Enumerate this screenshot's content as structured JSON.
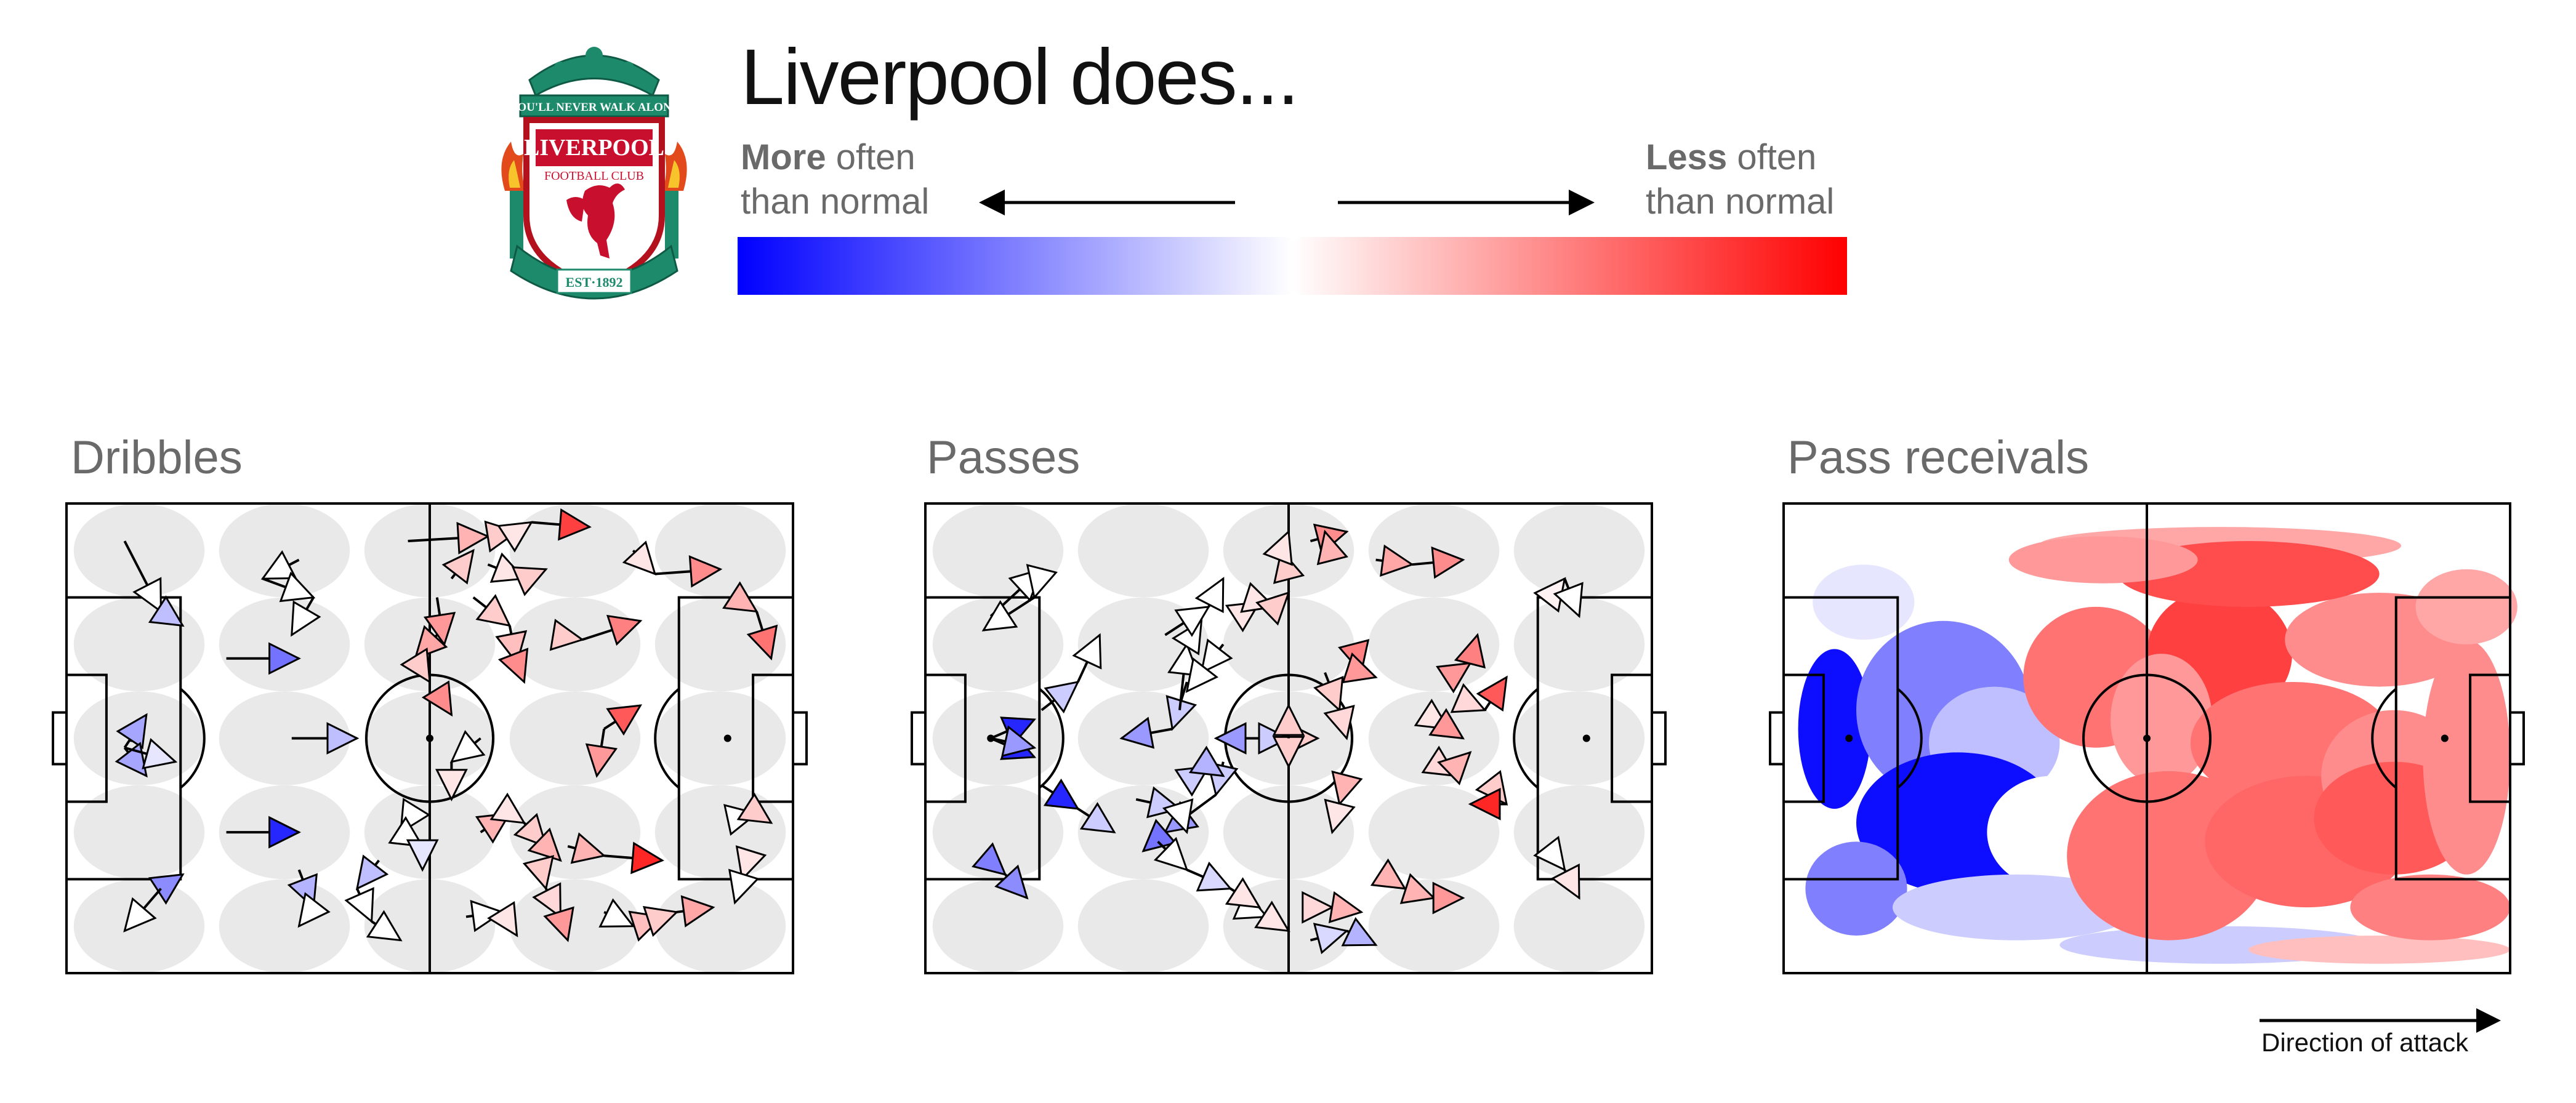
{
  "header": {
    "title": "Liverpool does...",
    "crest_text": [
      "YOU'LL NEVER WALK ALONE",
      "LIVERPOOL",
      "FOOTBALL CLUB",
      "EST·1892"
    ]
  },
  "legend": {
    "more_bold": "More",
    "more_rest": " often",
    "more_line2": "than normal",
    "less_bold": "Less",
    "less_rest": " often",
    "less_line2": "than normal",
    "color_low": "#0000ff",
    "color_mid": "#ffffff",
    "color_high": "#ff0000"
  },
  "direction_label": "Direction of attack",
  "chart_data": [
    {
      "type": "scatter",
      "title": "Dribbles",
      "value_scale": "-1 = more often than normal (blue), +1 = less often than normal (red)",
      "x_range": [
        0,
        100
      ],
      "y_range": [
        0,
        100
      ],
      "segments": [
        [
          8,
          92,
          13,
          77,
          0.0
        ],
        [
          13,
          77,
          16,
          74,
          -0.25
        ],
        [
          32,
          88,
          27,
          84,
          0.0
        ],
        [
          27,
          84,
          34,
          80,
          0.0
        ],
        [
          34,
          80,
          31,
          72,
          0.0
        ],
        [
          22,
          67,
          32,
          67,
          -0.55
        ],
        [
          31,
          50,
          40,
          50,
          -0.25
        ],
        [
          22,
          30,
          32,
          30,
          -0.85
        ],
        [
          8,
          48,
          11,
          55,
          -0.35
        ],
        [
          8,
          48,
          11,
          42,
          -0.35
        ],
        [
          8,
          48,
          15,
          45,
          -0.1
        ],
        [
          13,
          18,
          16,
          21,
          -0.45
        ],
        [
          13,
          18,
          8,
          9,
          0.0
        ],
        [
          32,
          22,
          34,
          14,
          -0.3
        ],
        [
          34,
          14,
          32,
          10,
          0.0
        ],
        [
          43,
          24,
          40,
          18,
          -0.25
        ],
        [
          40,
          18,
          42,
          11,
          0.0
        ],
        [
          42,
          11,
          46,
          7,
          0.0
        ],
        [
          48,
          35,
          46,
          30,
          0.0
        ],
        [
          46,
          30,
          49,
          27,
          0.0
        ],
        [
          49,
          27,
          49,
          22,
          -0.1
        ],
        [
          47,
          92,
          58,
          93,
          0.3
        ],
        [
          53,
          84,
          56,
          90,
          0.2
        ],
        [
          58,
          93,
          62,
          94,
          0.2
        ],
        [
          62,
          94,
          64,
          96,
          0.1
        ],
        [
          64,
          96,
          72,
          95,
          0.75
        ],
        [
          51,
          80,
          52,
          70,
          0.4
        ],
        [
          51,
          72,
          48,
          67,
          0.35
        ],
        [
          48,
          67,
          50,
          62,
          0.2
        ],
        [
          51,
          60,
          53,
          55,
          0.45
        ],
        [
          57,
          50,
          53,
          45,
          0.0
        ],
        [
          53,
          45,
          53,
          37,
          0.1
        ],
        [
          58,
          87,
          63,
          84,
          0.1
        ],
        [
          63,
          84,
          66,
          86,
          0.2
        ],
        [
          56,
          80,
          61,
          74,
          0.2
        ],
        [
          61,
          74,
          62,
          66,
          0.25
        ],
        [
          62,
          66,
          63,
          62,
          0.45
        ],
        [
          67,
          72,
          71,
          71,
          0.2
        ],
        [
          71,
          71,
          79,
          75,
          0.5
        ],
        [
          74,
          52,
          79,
          57,
          0.65
        ],
        [
          74,
          52,
          73,
          42,
          0.4
        ],
        [
          78,
          90,
          81,
          85,
          0.1
        ],
        [
          81,
          85,
          90,
          86,
          0.45
        ],
        [
          92,
          80,
          95,
          77,
          0.3
        ],
        [
          95,
          77,
          97,
          67,
          0.55
        ],
        [
          57,
          30,
          61,
          34,
          0.3
        ],
        [
          61,
          34,
          63,
          32,
          0.1
        ],
        [
          63,
          32,
          66,
          27,
          0.2
        ],
        [
          66,
          27,
          68,
          24,
          0.3
        ],
        [
          65,
          24,
          66,
          18,
          0.2
        ],
        [
          66,
          18,
          68,
          12,
          0.15
        ],
        [
          68,
          12,
          69,
          7,
          0.4
        ],
        [
          55,
          12,
          60,
          13,
          0.0
        ],
        [
          60,
          13,
          62,
          8,
          0.1
        ],
        [
          69,
          27,
          74,
          25,
          0.3
        ],
        [
          74,
          25,
          82,
          24,
          0.85
        ],
        [
          74,
          13,
          78,
          10,
          0.0
        ],
        [
          78,
          10,
          82,
          12,
          0.25
        ],
        [
          82,
          12,
          84,
          13,
          0.2
        ],
        [
          84,
          13,
          89,
          14,
          0.35
        ],
        [
          92,
          33,
          95,
          34,
          0.0
        ],
        [
          95,
          34,
          97,
          32,
          0.2
        ],
        [
          94,
          25,
          93,
          20,
          0.1
        ],
        [
          93,
          20,
          92,
          15,
          0.0
        ]
      ]
    },
    {
      "type": "scatter",
      "title": "Passes",
      "value_scale": "-1 = more often than normal (blue), +1 = less often than normal (red)",
      "x_range": [
        0,
        100
      ],
      "y_range": [
        0,
        100
      ],
      "segments": [
        [
          9,
          76,
          16,
          86
        ],
        [
          16,
          86,
          15,
          80
        ],
        [
          15,
          80,
          8,
          73
        ],
        [
          9,
          50,
          15,
          54,
          -0.85
        ],
        [
          9,
          50,
          15,
          46,
          -0.85
        ],
        [
          9,
          50,
          15,
          48,
          -0.4
        ],
        [
          16,
          56,
          21,
          62,
          -0.2
        ],
        [
          21,
          62,
          24,
          72,
          0.0
        ],
        [
          16,
          40,
          21,
          35,
          -0.85
        ],
        [
          21,
          35,
          26,
          30,
          -0.2
        ],
        [
          8,
          25,
          11,
          21,
          -0.5
        ],
        [
          11,
          21,
          14,
          16,
          -0.45
        ],
        [
          36,
          62,
          34,
          52,
          -0.2
        ],
        [
          34,
          52,
          27,
          50,
          -0.4
        ],
        [
          35,
          56,
          36,
          70,
          0.0
        ],
        [
          36,
          70,
          38,
          75,
          0.0
        ],
        [
          33,
          72,
          39,
          78,
          0.0
        ],
        [
          39,
          78,
          41,
          84,
          0.0
        ],
        [
          41,
          70,
          38,
          64,
          0.0
        ],
        [
          38,
          64,
          36,
          60,
          0.0
        ],
        [
          46,
          50,
          40,
          50,
          -0.4
        ],
        [
          46,
          50,
          50,
          50,
          -0.2
        ],
        [
          50,
          50,
          54,
          50,
          0.2
        ],
        [
          50,
          50,
          50,
          44,
          0.2
        ],
        [
          50,
          50,
          50,
          57,
          0.2
        ],
        [
          41,
          45,
          40,
          38,
          -0.2
        ],
        [
          40,
          38,
          33,
          30,
          -0.4
        ],
        [
          33,
          30,
          30,
          26,
          -0.55
        ],
        [
          29,
          37,
          35,
          35,
          -0.2
        ],
        [
          35,
          35,
          36,
          30,
          0.0
        ],
        [
          36,
          41,
          39,
          44,
          -0.2
        ],
        [
          39,
          44,
          41,
          42,
          -0.3
        ],
        [
          44,
          77,
          46,
          79,
          0.1
        ],
        [
          46,
          79,
          48,
          78,
          0.1
        ],
        [
          48,
          78,
          50,
          81,
          0.2
        ],
        [
          50,
          84,
          49,
          90,
          0.2
        ],
        [
          49,
          90,
          50,
          94,
          0.1
        ],
        [
          53,
          92,
          58,
          94,
          0.45
        ],
        [
          56,
          88,
          55,
          94,
          0.3
        ],
        [
          62,
          88,
          67,
          87,
          0.35
        ],
        [
          67,
          87,
          74,
          88,
          0.45
        ],
        [
          59,
          70,
          60,
          64,
          0.5
        ],
        [
          60,
          64,
          62,
          63,
          0.4
        ],
        [
          55,
          64,
          57,
          56,
          0.2
        ],
        [
          57,
          56,
          58,
          50,
          0.15
        ],
        [
          58,
          42,
          57,
          36,
          0.3
        ],
        [
          57,
          36,
          56,
          30,
          0.1
        ],
        [
          69,
          55,
          72,
          52,
          0.1
        ],
        [
          72,
          52,
          74,
          50,
          0.4
        ],
        [
          71,
          44,
          73,
          42,
          0.15
        ],
        [
          73,
          44,
          75,
          47,
          0.3
        ],
        [
          73,
          64,
          75,
          66,
          0.4
        ],
        [
          75,
          66,
          76,
          72,
          0.5
        ],
        [
          74,
          58,
          77,
          56,
          0.15
        ],
        [
          77,
          56,
          80,
          63,
          0.65
        ],
        [
          78,
          40,
          80,
          36,
          0.2
        ],
        [
          80,
          36,
          75,
          36,
          0.85
        ],
        [
          86,
          80,
          88,
          84,
          0.05
        ],
        [
          88,
          84,
          90,
          76,
          0.0
        ],
        [
          86,
          26,
          88,
          22,
          0.0
        ],
        [
          88,
          22,
          90,
          16,
          0.1
        ],
        [
          64,
          20,
          66,
          18,
          0.3
        ],
        [
          66,
          18,
          70,
          16,
          0.3
        ],
        [
          70,
          16,
          74,
          16,
          0.4
        ],
        [
          44,
          14,
          47,
          12,
          0.0
        ],
        [
          47,
          12,
          50,
          9,
          0.1
        ],
        [
          52,
          14,
          56,
          14,
          0.15
        ],
        [
          56,
          14,
          60,
          13,
          0.3
        ],
        [
          53,
          7,
          58,
          9,
          -0.15
        ],
        [
          58,
          9,
          62,
          6,
          -0.3
        ],
        [
          32,
          28,
          36,
          22,
          0.0
        ],
        [
          36,
          22,
          42,
          18,
          -0.15
        ],
        [
          42,
          18,
          46,
          14,
          0.1
        ]
      ]
    },
    {
      "type": "heatmap",
      "title": "Pass receivals",
      "value_scale": "-1 = more often than normal (blue), +1 = less often than normal (red)",
      "x_range": [
        0,
        100
      ],
      "y_range": [
        0,
        100
      ],
      "ellipses": [
        [
          7,
          52,
          5,
          17,
          -0.95
        ],
        [
          22,
          56,
          12,
          19,
          -0.5
        ],
        [
          29,
          49,
          9,
          12,
          -0.25
        ],
        [
          24,
          32,
          14,
          15,
          -0.95
        ],
        [
          37,
          30,
          9,
          12,
          0.0
        ],
        [
          11,
          79,
          7,
          8,
          -0.1
        ],
        [
          10,
          18,
          7,
          10,
          -0.5
        ],
        [
          32,
          14,
          17,
          7,
          -0.2
        ],
        [
          60,
          6,
          22,
          4,
          -0.2
        ],
        [
          82,
          5,
          18,
          3,
          0.25
        ],
        [
          43,
          63,
          10,
          15,
          0.55
        ],
        [
          60,
          68,
          10,
          14,
          0.75
        ],
        [
          52,
          54,
          7,
          14,
          0.4
        ],
        [
          70,
          49,
          14,
          13,
          0.55
        ],
        [
          53,
          25,
          14,
          18,
          0.55
        ],
        [
          72,
          28,
          14,
          14,
          0.6
        ],
        [
          84,
          42,
          10,
          14,
          0.45
        ],
        [
          84,
          33,
          11,
          12,
          0.65
        ],
        [
          94,
          46,
          6,
          25,
          0.45
        ],
        [
          82,
          71,
          13,
          10,
          0.45
        ],
        [
          94,
          78,
          7,
          8,
          0.35
        ],
        [
          60,
          91,
          25,
          4,
          0.35
        ],
        [
          64,
          85,
          18,
          7,
          0.7
        ],
        [
          44,
          88,
          13,
          5,
          0.4
        ],
        [
          89,
          14,
          11,
          7,
          0.5
        ]
      ]
    }
  ]
}
